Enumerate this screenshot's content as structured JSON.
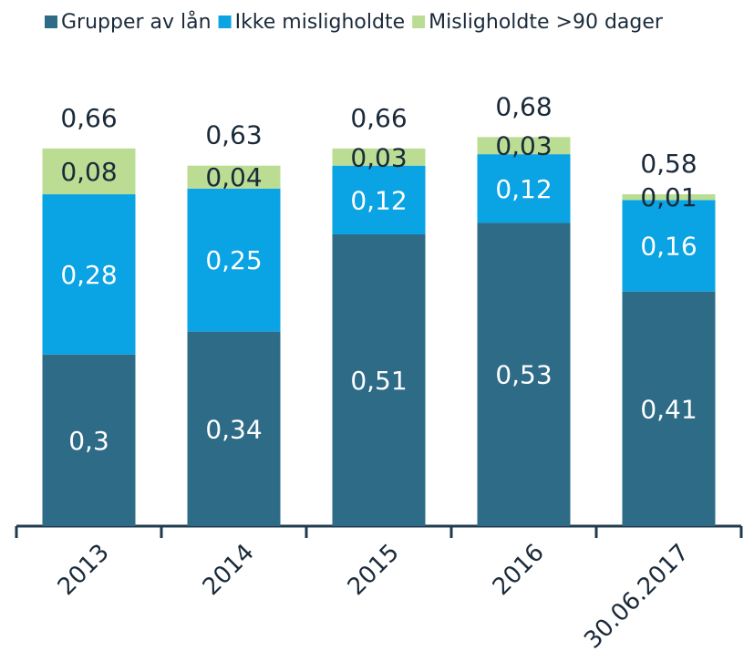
{
  "chart_data": {
    "type": "stacked_bar",
    "categories": [
      "2013",
      "2014",
      "2015",
      "2016",
      "30.06.2017"
    ],
    "series": [
      {
        "name": "Grupper av lån",
        "color": "#2e6b87",
        "values": [
          0.3,
          0.34,
          0.51,
          0.53,
          0.41
        ],
        "value_labels": [
          "0,3",
          "0,34",
          "0,51",
          "0,53",
          "0,41"
        ]
      },
      {
        "name": "Ikke misligholdte",
        "color": "#0aa3e4",
        "values": [
          0.28,
          0.25,
          0.12,
          0.12,
          0.16
        ],
        "value_labels": [
          "0,28",
          "0,25",
          "0,12",
          "0,12",
          "0,16"
        ]
      },
      {
        "name": "Misligholdte >90 dager",
        "color": "#bbdd93",
        "values": [
          0.08,
          0.04,
          0.03,
          0.03,
          0.01
        ],
        "value_labels": [
          "0,08",
          "0,04",
          "0,03",
          "0,03",
          "0,01"
        ]
      }
    ],
    "totals": [
      0.66,
      0.63,
      0.66,
      0.68,
      0.58
    ],
    "total_labels": [
      "0,66",
      "0,63",
      "0,66",
      "0,68",
      "0,58"
    ],
    "ylim": [
      0,
      0.8
    ],
    "legend": "top"
  }
}
